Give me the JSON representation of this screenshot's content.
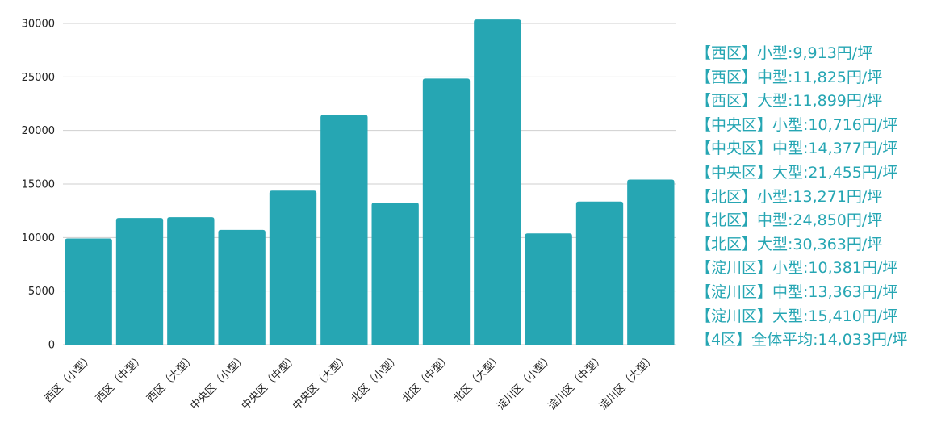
{
  "chart_data": {
    "type": "bar",
    "categories": [
      "西区（小型）",
      "西区（中型）",
      "西区（大型）",
      "中央区（小型）",
      "中央区（中型）",
      "中央区（大型）",
      "北区（小型）",
      "北区（中型）",
      "北区（大型）",
      "淀川区（小型）",
      "淀川区（中型）",
      "淀川区（大型）"
    ],
    "values": [
      9913,
      11825,
      11899,
      10716,
      14377,
      21455,
      13271,
      24850,
      30363,
      10381,
      13363,
      15410
    ],
    "ylim": [
      0,
      30000
    ],
    "yticks": [
      0,
      5000,
      10000,
      15000,
      20000,
      25000,
      30000
    ],
    "grid": true,
    "color": "#26a6b3",
    "annotations": [
      "【西区】小型:9,913円/坪",
      "【西区】中型:11,825円/坪",
      "【西区】大型:11,899円/坪",
      "【中央区】小型:10,716円/坪",
      "【中央区】中型:14,377円/坪",
      "【中央区】大型:21,455円/坪",
      "【北区】小型:13,271円/坪",
      "【北区】中型:24,850円/坪",
      "【北区】大型:30,363円/坪",
      "【淀川区】小型:10,381円/坪",
      "【淀川区】中型:13,363円/坪",
      "【淀川区】大型:15,410円/坪",
      "【4区】全体平均:14,033円/坪"
    ]
  }
}
